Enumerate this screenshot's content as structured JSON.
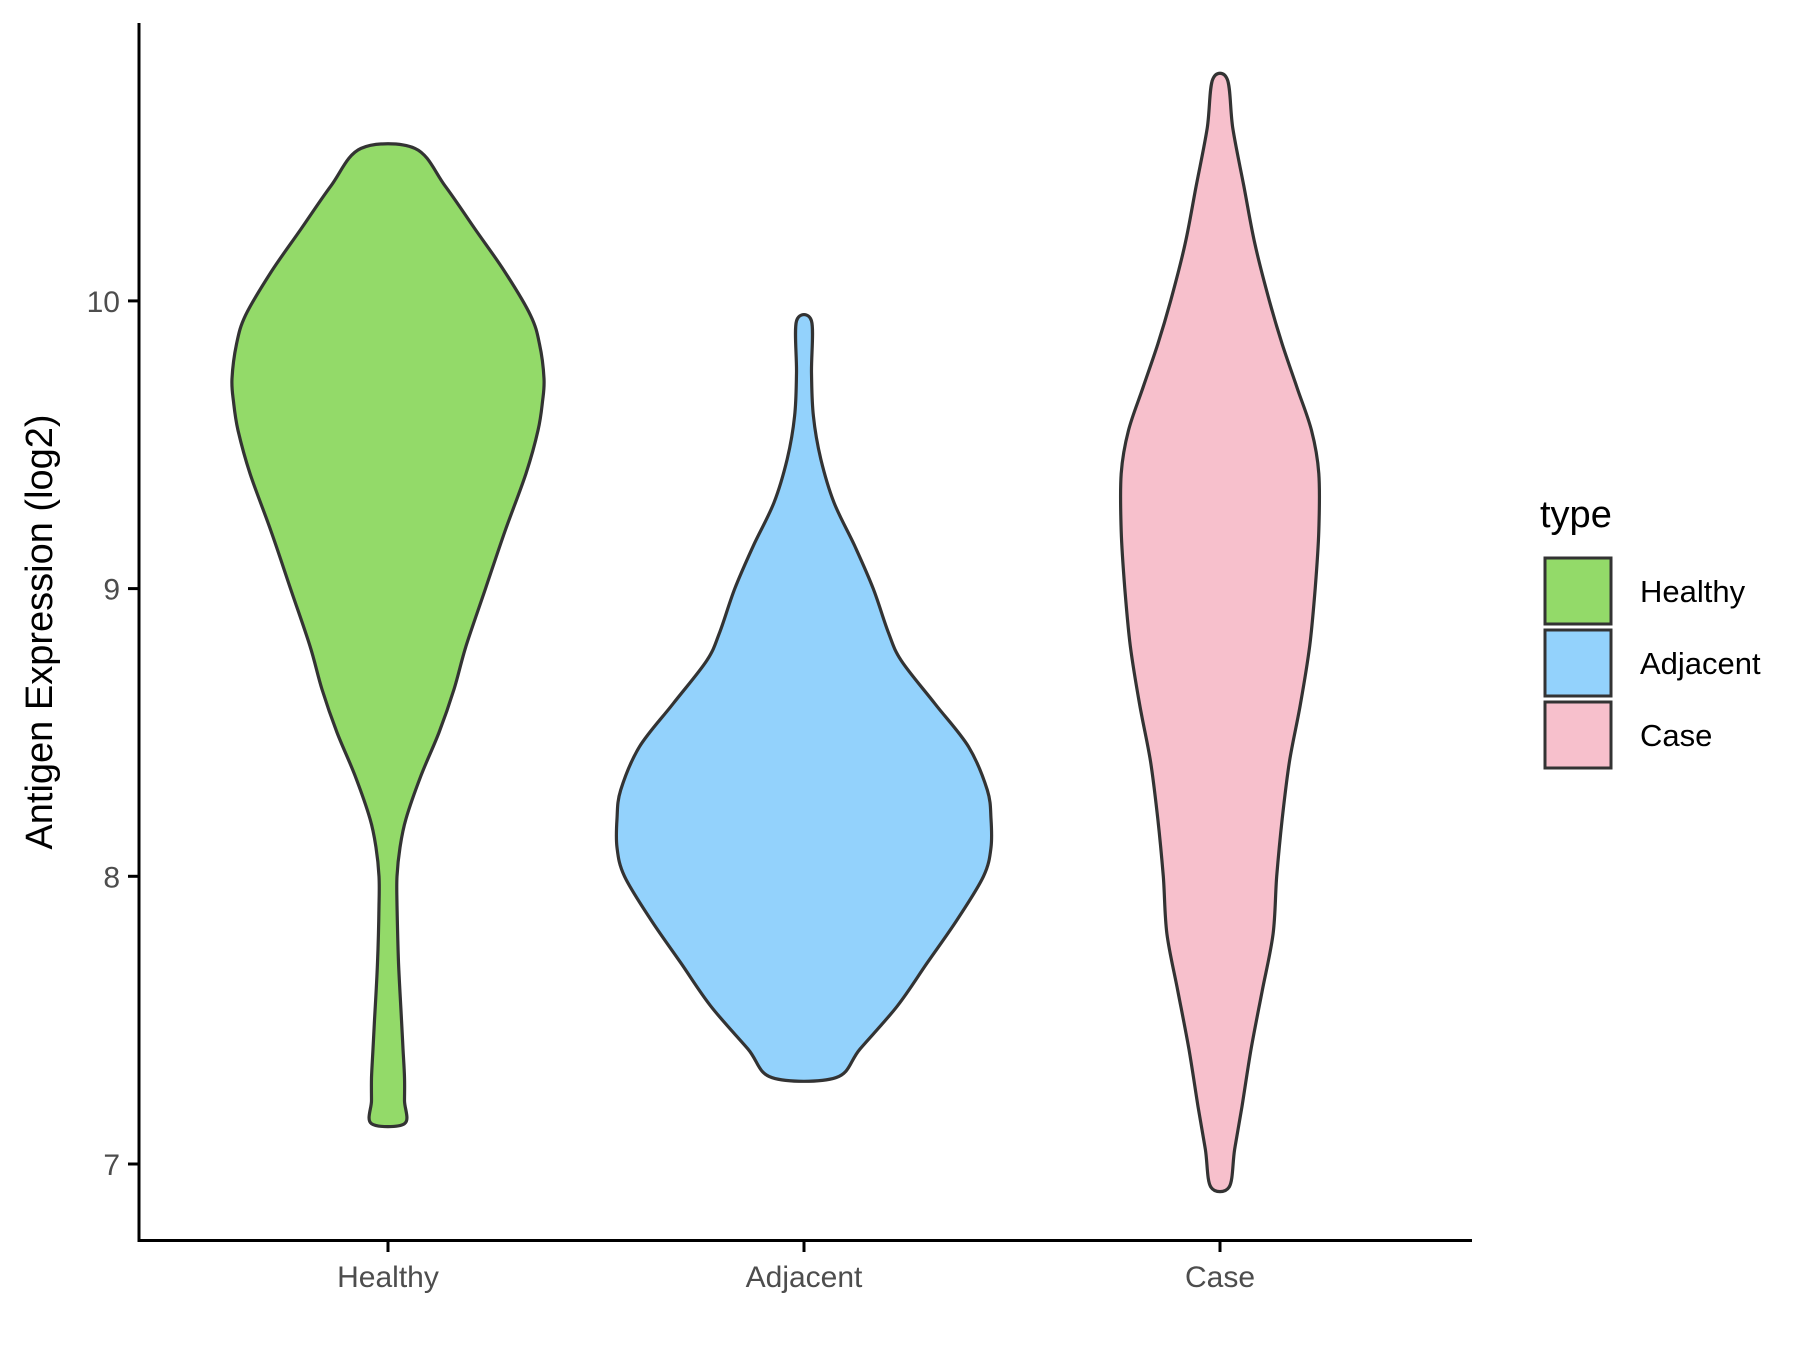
{
  "chart_data": {
    "type": "violin",
    "ylabel": "Antigen Expression (log2)",
    "xlabel": "",
    "categories": [
      "Healthy",
      "Adjacent",
      "Case"
    ],
    "yticks": [
      7,
      8,
      9,
      10
    ],
    "ylim": [
      6.7,
      10.95
    ],
    "grid": false,
    "legend": {
      "title": "type",
      "placement": "right",
      "entries": [
        {
          "label": "Healthy",
          "color": "#93DA69"
        },
        {
          "label": "Adjacent",
          "color": "#93D2FC"
        },
        {
          "label": "Case",
          "color": "#F7C0CC"
        }
      ]
    },
    "series": [
      {
        "category": "Healthy",
        "color": "#93DA69",
        "min": 7.14,
        "max": 10.53,
        "profile": [
          [
            7.14,
            0.11
          ],
          [
            7.22,
            0.11
          ],
          [
            7.3,
            0.11
          ],
          [
            7.4,
            0.1
          ],
          [
            7.5,
            0.09
          ],
          [
            7.7,
            0.07
          ],
          [
            7.9,
            0.06
          ],
          [
            8.0,
            0.06
          ],
          [
            8.1,
            0.08
          ],
          [
            8.2,
            0.12
          ],
          [
            8.35,
            0.22
          ],
          [
            8.5,
            0.34
          ],
          [
            8.65,
            0.44
          ],
          [
            8.8,
            0.52
          ],
          [
            9.0,
            0.65
          ],
          [
            9.2,
            0.78
          ],
          [
            9.4,
            0.92
          ],
          [
            9.55,
            1.0
          ],
          [
            9.65,
            1.03
          ],
          [
            9.73,
            1.04
          ],
          [
            9.85,
            1.01
          ],
          [
            9.95,
            0.95
          ],
          [
            10.1,
            0.78
          ],
          [
            10.25,
            0.58
          ],
          [
            10.4,
            0.38
          ],
          [
            10.53,
            0.18
          ]
        ]
      },
      {
        "category": "Adjacent",
        "color": "#93D2FC",
        "min": 7.3,
        "max": 9.93,
        "profile": [
          [
            7.3,
            0.17
          ],
          [
            7.4,
            0.3
          ],
          [
            7.55,
            0.5
          ],
          [
            7.7,
            0.66
          ],
          [
            7.85,
            0.82
          ],
          [
            8.0,
            0.96
          ],
          [
            8.1,
            1.0
          ],
          [
            8.2,
            1.0
          ],
          [
            8.3,
            0.98
          ],
          [
            8.45,
            0.88
          ],
          [
            8.6,
            0.7
          ],
          [
            8.75,
            0.52
          ],
          [
            8.85,
            0.45
          ],
          [
            9.0,
            0.37
          ],
          [
            9.15,
            0.27
          ],
          [
            9.3,
            0.16
          ],
          [
            9.45,
            0.09
          ],
          [
            9.6,
            0.05
          ],
          [
            9.75,
            0.04
          ],
          [
            9.93,
            0.04
          ]
        ]
      },
      {
        "category": "Case",
        "color": "#F7C0CC",
        "min": 6.92,
        "max": 10.77,
        "profile": [
          [
            6.92,
            0.05
          ],
          [
            7.05,
            0.08
          ],
          [
            7.2,
            0.12
          ],
          [
            7.4,
            0.17
          ],
          [
            7.6,
            0.23
          ],
          [
            7.8,
            0.29
          ],
          [
            8.0,
            0.31
          ],
          [
            8.2,
            0.34
          ],
          [
            8.4,
            0.38
          ],
          [
            8.6,
            0.44
          ],
          [
            8.8,
            0.49
          ],
          [
            9.0,
            0.52
          ],
          [
            9.2,
            0.54
          ],
          [
            9.4,
            0.54
          ],
          [
            9.55,
            0.5
          ],
          [
            9.7,
            0.42
          ],
          [
            9.85,
            0.34
          ],
          [
            10.0,
            0.27
          ],
          [
            10.2,
            0.19
          ],
          [
            10.4,
            0.13
          ],
          [
            10.6,
            0.07
          ],
          [
            10.77,
            0.04
          ]
        ]
      }
    ]
  }
}
